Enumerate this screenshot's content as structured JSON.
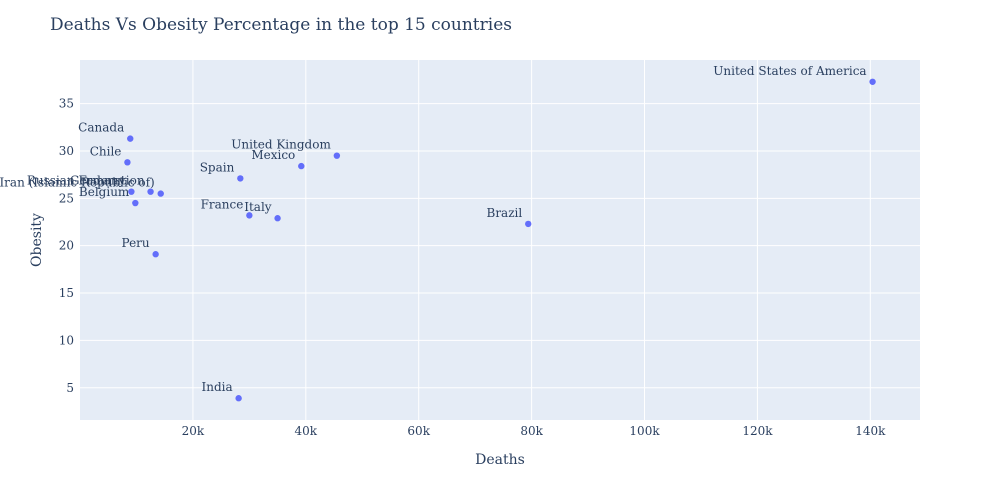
{
  "chart_data": {
    "type": "scatter",
    "title": "Deaths Vs Obesity Percentage in the top 15 countries",
    "xlabel": "Deaths",
    "ylabel": "Obesity",
    "xlim": [
      0,
      148800
    ],
    "ylim": [
      1.6,
      39.6
    ],
    "x_ticks": [
      20000,
      40000,
      60000,
      80000,
      100000,
      120000,
      140000
    ],
    "x_tick_labels": [
      "20k",
      "40k",
      "60k",
      "80k",
      "100k",
      "120k",
      "140k"
    ],
    "y_ticks": [
      5,
      10,
      15,
      20,
      25,
      30,
      35
    ],
    "y_tick_labels": [
      "5",
      "10",
      "15",
      "20",
      "25",
      "30",
      "35"
    ],
    "grid": true,
    "marker_color": "#636efa",
    "plot_bg": "#e5ecf6",
    "text_color": "#2a3f5f",
    "points": [
      {
        "label": "United States of America",
        "x": 140400,
        "y": 37.3
      },
      {
        "label": "Brazil",
        "x": 79400,
        "y": 22.3
      },
      {
        "label": "United Kingdom",
        "x": 45500,
        "y": 29.5
      },
      {
        "label": "Mexico",
        "x": 39200,
        "y": 28.4
      },
      {
        "label": "Italy",
        "x": 35000,
        "y": 22.9
      },
      {
        "label": "France",
        "x": 30000,
        "y": 23.2
      },
      {
        "label": "Spain",
        "x": 28400,
        "y": 27.1
      },
      {
        "label": "India",
        "x": 28100,
        "y": 3.9
      },
      {
        "label": "Peru",
        "x": 13400,
        "y": 19.1
      },
      {
        "label": "Iran (Islamic Republic of)",
        "x": 14300,
        "y": 25.5
      },
      {
        "label": "Russian Federation",
        "x": 12500,
        "y": 25.7
      },
      {
        "label": "Belgium",
        "x": 9800,
        "y": 24.5
      },
      {
        "label": "Germany",
        "x": 9100,
        "y": 25.7
      },
      {
        "label": "Canada",
        "x": 8900,
        "y": 31.3
      },
      {
        "label": "Chile",
        "x": 8400,
        "y": 28.8
      }
    ]
  }
}
